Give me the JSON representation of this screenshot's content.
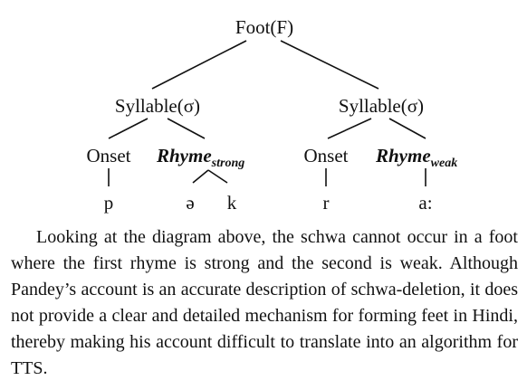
{
  "tree": {
    "root": "Foot(F)",
    "syllable_left": "Syllable(σ)",
    "syllable_right": "Syllable(σ)",
    "onset_left": "Onset",
    "rhyme_left": {
      "base": "Rhyme",
      "subscript": "strong"
    },
    "onset_right": "Onset",
    "rhyme_right": {
      "base": "Rhyme",
      "subscript": "weak"
    },
    "segments": {
      "onset_left": "p",
      "rhyme_left_1": "ə",
      "rhyme_left_2": "k",
      "onset_right": "r",
      "rhyme_right": "a:"
    }
  },
  "paragraph": "Looking at the diagram above, the schwa cannot occur in a foot where the first rhyme is strong and the second is weak. Although Pandey’s account is an accurate description of schwa-deletion, it does not provide a clear and detailed mechanism for forming feet in Hindi, thereby making his account difficult to translate into an algorithm for TTS."
}
